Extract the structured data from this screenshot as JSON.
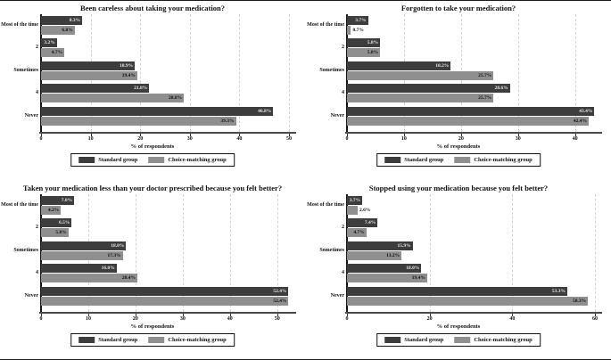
{
  "figure": {
    "xlabel": "% of respondents",
    "legend": [
      {
        "label": "Standard group",
        "color": "#3d3d3d",
        "text_color": "#e8e8e8"
      },
      {
        "label": "Choice-matching group",
        "color": "#8f8f8f",
        "text_color": "#0d0d0d"
      }
    ],
    "grid_color": "#d4d4d4",
    "axis_color": "#4a4a4a",
    "background": "#ffffff"
  },
  "chart_data": [
    {
      "type": "bar",
      "orientation": "horizontal",
      "title": "Been careless about taking your medication?",
      "xlabel": "% of respondents",
      "categories": [
        "Most of the time",
        "2",
        "Sometimes",
        "4",
        "Never"
      ],
      "ticks": [
        0,
        10,
        20,
        30,
        40,
        50
      ],
      "xmax": 50,
      "grid": true,
      "legend_position": "bottom",
      "series": [
        {
          "name": "Standard group",
          "values": [
            8.3,
            3.2,
            18.9,
            21.8,
            46.8
          ]
        },
        {
          "name": "Choice-matching group",
          "values": [
            6.8,
            4.7,
            19.4,
            28.8,
            39.3
          ]
        }
      ]
    },
    {
      "type": "bar",
      "orientation": "horizontal",
      "title": "Forgotten to take your medication?",
      "xlabel": "% of respondents",
      "categories": [
        "Most of the time",
        "2",
        "Sometimes",
        "4",
        "Never"
      ],
      "ticks": [
        0,
        10,
        20,
        30,
        40
      ],
      "xmax": 43.5,
      "grid": true,
      "legend_position": "bottom",
      "series": [
        {
          "name": "Standard group",
          "values": [
            3.7,
            5.8,
            18.2,
            28.6,
            43.4
          ]
        },
        {
          "name": "Choice-matching group",
          "values": [
            0.7,
            5.8,
            25.7,
            25.7,
            42.4
          ]
        }
      ]
    },
    {
      "type": "bar",
      "orientation": "horizontal",
      "title": "Taken your medication less than your doctor prescribed because you felt better?",
      "xlabel": "% of respondents",
      "categories": [
        "Most of the time",
        "2",
        "Sometimes",
        "4",
        "Never"
      ],
      "ticks": [
        0,
        10,
        20,
        30,
        40,
        50
      ],
      "xmax": 52.5,
      "grid": true,
      "legend_position": "bottom",
      "series": [
        {
          "name": "Standard group",
          "values": [
            7.0,
            6.5,
            18.0,
            16.0,
            52.4
          ]
        },
        {
          "name": "Choice-matching group",
          "values": [
            4.2,
            5.8,
            17.3,
            20.4,
            52.4
          ]
        }
      ]
    },
    {
      "type": "bar",
      "orientation": "horizontal",
      "title": "Stopped using your medication because you felt better?",
      "xlabel": "% of respondents",
      "categories": [
        "Most of the time",
        "2",
        "Sometimes",
        "4",
        "Never"
      ],
      "ticks": [
        0,
        20,
        40,
        60
      ],
      "xmax": 60,
      "grid": true,
      "legend_position": "bottom",
      "series": [
        {
          "name": "Standard group",
          "values": [
            3.7,
            7.4,
            15.9,
            18.0,
            53.3
          ]
        },
        {
          "name": "Choice-matching group",
          "values": [
            2.6,
            4.7,
            13.2,
            19.4,
            58.3
          ]
        }
      ]
    }
  ]
}
